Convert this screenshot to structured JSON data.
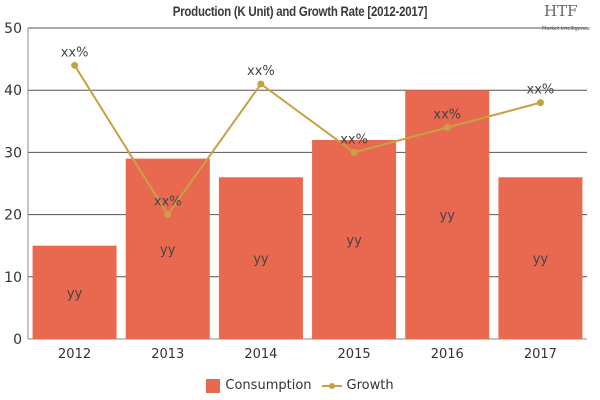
{
  "chart_data": {
    "type": "bar",
    "title": "Production (K Unit) and Growth Rate [2012-2017]",
    "categories": [
      "2012",
      "2013",
      "2014",
      "2015",
      "2016",
      "2017"
    ],
    "series": [
      {
        "name": "Consumption",
        "type": "bar",
        "values": [
          15,
          29,
          26,
          32,
          40,
          26
        ],
        "labels": [
          "yy",
          "yy",
          "yy",
          "yy",
          "yy",
          "yy"
        ],
        "color": "#e8694f"
      },
      {
        "name": "Growth",
        "type": "line",
        "values": [
          44,
          20,
          41,
          30,
          34,
          38
        ],
        "labels": [
          "xx%",
          "xx%",
          "xx%",
          "xx%",
          "xx%",
          "xx%"
        ],
        "color": "#c9a043"
      }
    ],
    "ylim": [
      0,
      50
    ],
    "yticks": [
      0,
      10,
      20,
      30,
      40,
      50
    ],
    "grid": true,
    "legend": "bottom"
  },
  "logo": {
    "text": "HTF",
    "subtext": "Market Intelligence"
  }
}
